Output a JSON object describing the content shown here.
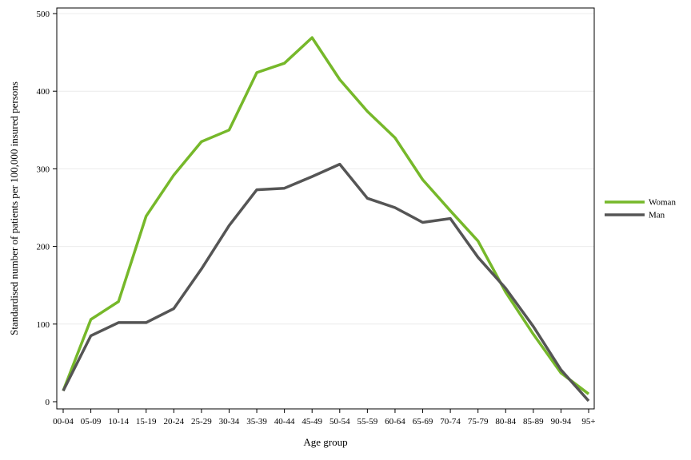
{
  "chart_data": {
    "type": "line",
    "title": "",
    "xlabel": "Age group",
    "ylabel": "Standardised number of patients per 100,000 insured persons",
    "categories": [
      "00-04",
      "05-09",
      "10-14",
      "15-19",
      "20-24",
      "25-29",
      "30-34",
      "35-39",
      "40-44",
      "45-49",
      "50-54",
      "55-59",
      "60-64",
      "65-69",
      "70-74",
      "75-79",
      "80-84",
      "85-89",
      "90-94",
      "95+"
    ],
    "ylim": [
      0,
      500
    ],
    "yticks": [
      0,
      100,
      200,
      300,
      400,
      500
    ],
    "grid": true,
    "legend_position": "right",
    "series": [
      {
        "name": "Woman",
        "color": "#76b82a",
        "values": [
          14,
          106,
          129,
          239,
          292,
          335,
          350,
          424,
          436,
          469,
          415,
          374,
          340,
          286,
          246,
          207,
          141,
          87,
          37,
          10
        ]
      },
      {
        "name": "Man",
        "color": "#555555",
        "values": [
          14,
          85,
          102,
          102,
          120,
          171,
          227,
          273,
          275,
          290,
          306,
          262,
          250,
          231,
          236,
          186,
          146,
          97,
          41,
          1
        ]
      }
    ]
  }
}
